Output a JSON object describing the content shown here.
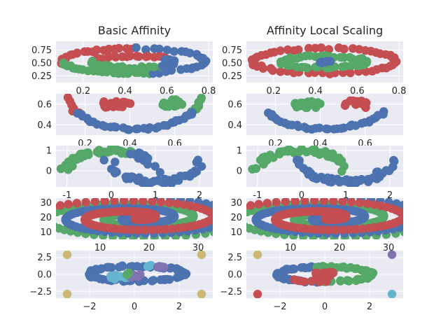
{
  "figure": {
    "column_titles": [
      "Basic Affinity",
      "Affinity Local Scaling"
    ]
  },
  "palette": {
    "blue": "#4c72b0",
    "green": "#55a868",
    "red": "#c44e52",
    "purple": "#8172b2",
    "yellow": "#ccb974",
    "cyan": "#64b5cd"
  },
  "chart_data": [
    {
      "type": "scatter",
      "row": 0,
      "column": 0,
      "title": "Basic Affinity",
      "dataset": "concentric-ellipses",
      "xlim": [
        0.07,
        0.82
      ],
      "ylim": [
        0.12,
        0.92
      ],
      "xticks": [
        0.2,
        0.4,
        0.6,
        0.8
      ],
      "xtick_labels": [
        "0.2",
        "0.4",
        "0.6",
        "0.8"
      ],
      "yticks": [
        0.25,
        0.5,
        0.75
      ],
      "ytick_labels": [
        "0.25",
        "0.50",
        "0.75"
      ],
      "grid": true,
      "clusters": [
        "red-outer-left",
        "green-outer-lower-left",
        "blue-outer-right",
        "red-inner-top",
        "green-inner-left",
        "blue-inner-right"
      ]
    },
    {
      "type": "scatter",
      "row": 0,
      "column": 1,
      "title": "Affinity Local Scaling",
      "dataset": "concentric-ellipses",
      "xlim": [
        0.07,
        0.82
      ],
      "ylim": [
        0.12,
        0.92
      ],
      "xticks": [
        0.2,
        0.4,
        0.6,
        0.8
      ],
      "xtick_labels": [
        "0.2",
        "0.4",
        "0.6",
        "0.8"
      ],
      "yticks": [
        0.25,
        0.5,
        0.75
      ],
      "ytick_labels": [
        "0.25",
        "0.50",
        "0.75"
      ],
      "grid": true,
      "clusters": [
        "red-outer-ellipse",
        "green-inner-ellipse",
        "blue-center"
      ]
    },
    {
      "type": "scatter",
      "row": 1,
      "column": 0,
      "dataset": "smile",
      "xlim": [
        0.07,
        0.77
      ],
      "ylim": [
        0.3,
        0.7
      ],
      "xticks": [
        0.2,
        0.4,
        0.6
      ],
      "xtick_labels": [
        "0.2",
        "0.4",
        "0.6"
      ],
      "yticks": [
        0.4,
        0.6
      ],
      "ytick_labels": [
        "0.4",
        "0.6"
      ],
      "grid": true,
      "clusters": [
        "red-left-eye-and-mouth-end",
        "green-right-eye-and-mouth-end",
        "blue-mouth"
      ]
    },
    {
      "type": "scatter",
      "row": 1,
      "column": 1,
      "dataset": "smile",
      "xlim": [
        0.07,
        0.77
      ],
      "ylim": [
        0.3,
        0.7
      ],
      "xticks": [
        0.2,
        0.4,
        0.6
      ],
      "xtick_labels": [
        "0.2",
        "0.4",
        "0.6"
      ],
      "yticks": [
        0.4,
        0.6
      ],
      "ytick_labels": [
        "0.4",
        "0.6"
      ],
      "grid": true,
      "clusters": [
        "green-left-eye",
        "red-right-eye",
        "blue-mouth"
      ]
    },
    {
      "type": "scatter",
      "row": 2,
      "column": 0,
      "dataset": "two-moons",
      "xlim": [
        -1.25,
        2.3
      ],
      "ylim": [
        -0.8,
        1.25
      ],
      "xticks": [
        -1,
        0,
        1,
        2
      ],
      "xtick_labels": [
        "-1",
        "0",
        "1",
        "2"
      ],
      "yticks": [
        0,
        1
      ],
      "ytick_labels": [
        "0",
        "1"
      ],
      "grid": true,
      "clusters": [
        "green-upper-moon-left",
        "blue-lower-moon-and-upper-right"
      ]
    },
    {
      "type": "scatter",
      "row": 2,
      "column": 1,
      "dataset": "two-moons",
      "xlim": [
        -1.25,
        2.3
      ],
      "ylim": [
        -0.8,
        1.25
      ],
      "xticks": [
        -1,
        0,
        1,
        2
      ],
      "xtick_labels": [
        "-1",
        "0",
        "1",
        "2"
      ],
      "yticks": [
        0,
        1
      ],
      "ytick_labels": [
        "0",
        "1"
      ],
      "grid": true,
      "clusters": [
        "green-upper-moon",
        "blue-lower-moon"
      ]
    },
    {
      "type": "scatter",
      "row": 3,
      "column": 0,
      "dataset": "spirals",
      "xlim": [
        1,
        33
      ],
      "ylim": [
        5,
        33
      ],
      "xticks": [
        10,
        20,
        30
      ],
      "xtick_labels": [
        "10",
        "20",
        "30"
      ],
      "yticks": [
        10,
        20,
        30
      ],
      "ytick_labels": [
        "10",
        "20",
        "30"
      ],
      "grid": true,
      "clusters": [
        "green-spiral",
        "blue-spiral",
        "red-spiral"
      ]
    },
    {
      "type": "scatter",
      "row": 3,
      "column": 1,
      "dataset": "spirals",
      "xlim": [
        1,
        33
      ],
      "ylim": [
        5,
        33
      ],
      "xticks": [
        10,
        20,
        30
      ],
      "xtick_labels": [
        "10",
        "20",
        "30"
      ],
      "yticks": [
        10,
        20,
        30
      ],
      "ytick_labels": [
        "10",
        "20",
        "30"
      ],
      "grid": true,
      "clusters": [
        "green-spiral",
        "blue-spiral",
        "red-spiral"
      ]
    },
    {
      "type": "scatter",
      "row": 4,
      "column": 0,
      "dataset": "ring-with-corner-points",
      "xlim": [
        -3.5,
        3.5
      ],
      "ylim": [
        -3.5,
        3.5
      ],
      "xticks": [
        -2,
        0,
        2
      ],
      "xtick_labels": [
        "−2",
        "0",
        "2"
      ],
      "yticks": [
        -2.5,
        0,
        2.5
      ],
      "ytick_labels": [
        "−2.5",
        "0.0",
        "2.5"
      ],
      "grid": true,
      "clusters": [
        "blue-ring",
        "yellow-corner-points",
        "cyan-center",
        "purple-center",
        "green-center"
      ]
    },
    {
      "type": "scatter",
      "row": 4,
      "column": 1,
      "dataset": "ring-with-corner-points",
      "xlim": [
        -3.5,
        3.5
      ],
      "ylim": [
        -3.5,
        3.5
      ],
      "xticks": [
        -2,
        0,
        2
      ],
      "xtick_labels": [
        "−2",
        "0",
        "2"
      ],
      "yticks": [
        -2.5,
        0,
        2.5
      ],
      "ytick_labels": [
        "−2.5",
        "0.0",
        "2.5"
      ],
      "grid": true,
      "clusters": [
        "blue-ring-left",
        "green-ring-right",
        "red-center",
        "yellow-corner-top-left",
        "purple-corner-top-right",
        "red-corner-bottom-left",
        "cyan-corner-bottom-right"
      ]
    }
  ]
}
